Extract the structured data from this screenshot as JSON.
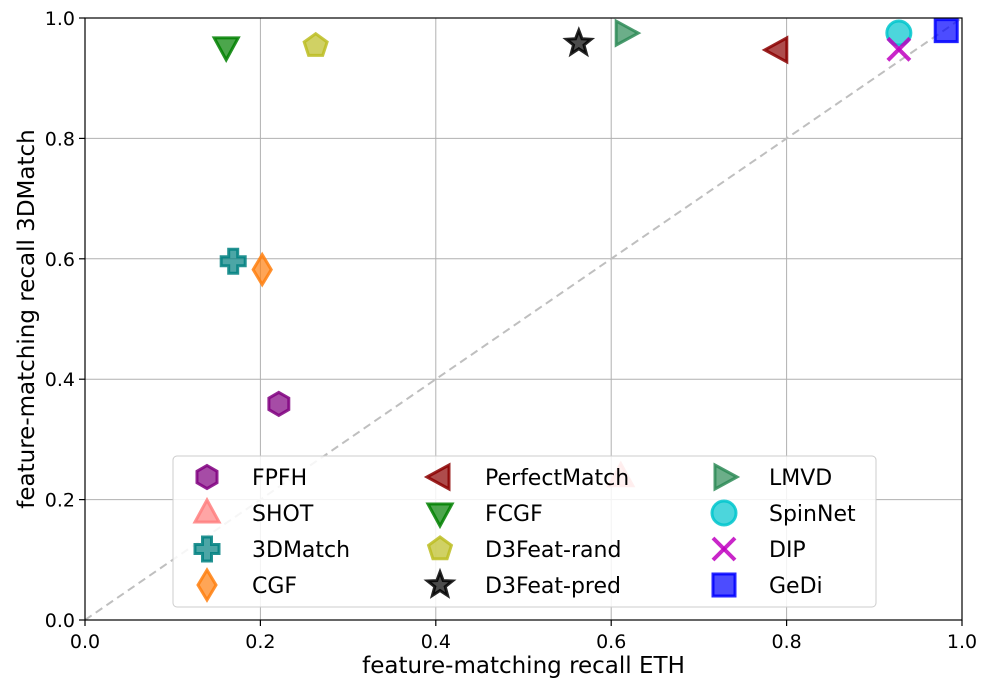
{
  "chart_data": {
    "type": "scatter",
    "xlabel": "feature-matching recall ETH",
    "ylabel": "feature-matching recall 3DMatch",
    "xlim": [
      0,
      1
    ],
    "ylim": [
      0,
      1
    ],
    "xticks": [
      "0.0",
      "0.2",
      "0.4",
      "0.6",
      "0.8",
      "1.0"
    ],
    "yticks": [
      "0.0",
      "0.2",
      "0.4",
      "0.6",
      "0.8",
      "1.0"
    ],
    "grid": true,
    "diagonal_reference": true,
    "legend": {
      "placement": "lower-center",
      "columns": 3
    },
    "series": [
      {
        "name": "FPFH",
        "x": 0.221,
        "y": 0.359,
        "marker": "hexagon",
        "color": "#800080"
      },
      {
        "name": "SHOT",
        "x": 0.611,
        "y": 0.238,
        "marker": "triangle-up",
        "color": "#ff7f7f"
      },
      {
        "name": "3DMatch",
        "x": 0.169,
        "y": 0.596,
        "marker": "plus",
        "color": "#008080"
      },
      {
        "name": "CGF",
        "x": 0.202,
        "y": 0.582,
        "marker": "diamond",
        "color": "#ff7f0e"
      },
      {
        "name": "PerfectMatch",
        "x": 0.79,
        "y": 0.947,
        "marker": "triangle-left",
        "color": "#8b0000"
      },
      {
        "name": "FCGF",
        "x": 0.161,
        "y": 0.952,
        "marker": "triangle-down",
        "color": "#008000"
      },
      {
        "name": "D3Feat-rand",
        "x": 0.263,
        "y": 0.954,
        "marker": "pentagon",
        "color": "#bcbd22"
      },
      {
        "name": "D3Feat-pred",
        "x": 0.563,
        "y": 0.958,
        "marker": "star",
        "color": "#000000"
      },
      {
        "name": "LMVD",
        "x": 0.616,
        "y": 0.975,
        "marker": "triangle-right",
        "color": "#2e8b57"
      },
      {
        "name": "SpinNet",
        "x": 0.928,
        "y": 0.975,
        "marker": "circle",
        "color": "#00c5cd"
      },
      {
        "name": "DIP",
        "x": 0.928,
        "y": 0.948,
        "marker": "x",
        "color": "#bf00bf"
      },
      {
        "name": "GeDi",
        "x": 0.982,
        "y": 0.979,
        "marker": "square",
        "color": "#0000ff"
      }
    ]
  }
}
